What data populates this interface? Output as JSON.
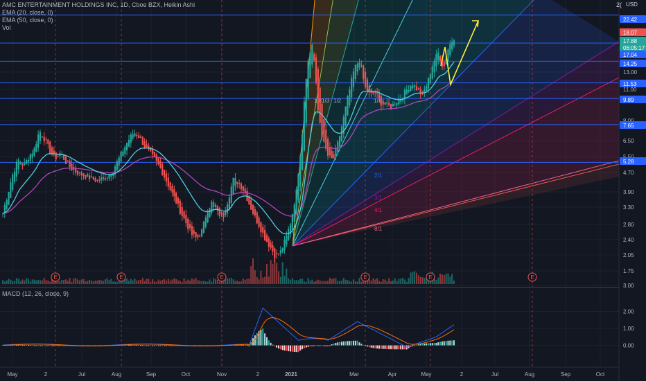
{
  "legend": {
    "title": "AMC ENTERTAINMENT HOLDINGS INC, 1D, Cboe BZX, Heikin Ashi",
    "ema20": "EMA (20, close, 0)",
    "ema50": "EMA (50, close, 0)",
    "vol": "Vol"
  },
  "macd_legend": "MACD (12, 26, close, 9)",
  "axis_unit": "USD",
  "axis_gear": "2(",
  "colors": {
    "background": "#131722",
    "up": "#26a69a",
    "down": "#ef5350",
    "ema20": "#4dd0e1",
    "ema50": "#ab47bc",
    "hline": "#2962ff",
    "arrow": "#ffeb3b"
  },
  "chart_data": [
    {
      "type": "candlestick",
      "ylabel": "USD",
      "scale": "log",
      "ylim": [
        1.6,
        26
      ],
      "y_ticks": [
        "2(",
        "22.42",
        "18.07",
        "17.88",
        "06:05:17",
        "17.04",
        "14.25",
        "13.00",
        "11.53",
        "11.00",
        "9.89",
        "8.00",
        "7.65",
        "6.50",
        "5.50",
        "5.28",
        "4.70",
        "3.90",
        "3.30",
        "2.80",
        "2.40",
        "2.05",
        "1.75",
        "3.00"
      ],
      "x_ticks": [
        "May",
        "2",
        "Jul",
        "Aug",
        "Sep",
        "Oct",
        "Nov",
        "2",
        "2021",
        "Mar",
        "Apr",
        "May",
        "2",
        "Jul",
        "Aug",
        "Sep",
        "Oct"
      ],
      "price_badges": [
        {
          "label": "22.42",
          "color": "#2962ff"
        },
        {
          "label": "18.07",
          "color": "#ef5350"
        },
        {
          "label": "17.88",
          "color": "#26a69a"
        },
        {
          "label": "06:05:17",
          "color": "#26a69a"
        },
        {
          "label": "17.04",
          "color": "#2962ff"
        },
        {
          "label": "14.25",
          "color": "#2962ff"
        },
        {
          "label": "11.53",
          "color": "#2962ff"
        },
        {
          "label": "9.89",
          "color": "#2962ff"
        },
        {
          "label": "7.65",
          "color": "#2962ff"
        },
        {
          "label": "5.28",
          "color": "#2962ff"
        }
      ],
      "horizontal_levels": [
        22.42,
        17.04,
        14.25,
        11.53,
        9.89,
        7.65,
        5.28
      ],
      "earnings_marker": "E",
      "gann_fan_labels": [
        "1/8",
        "1/3",
        "1/2",
        "1/1",
        "2/1",
        "3/1",
        "4/1",
        "8/1"
      ],
      "series": [
        {
          "name": "EMA (20, close, 0)"
        },
        {
          "name": "EMA (50, close, 0)"
        },
        {
          "name": "Vol"
        }
      ],
      "price_path": [
        3.2,
        3.9,
        4.8,
        5.4,
        5.1,
        5.6,
        6.0,
        7.2,
        6.6,
        5.9,
        5.5,
        5.8,
        5.3,
        5.0,
        4.8,
        4.7,
        4.6,
        4.5,
        4.4,
        4.5,
        4.6,
        4.9,
        5.4,
        6.0,
        6.6,
        7.1,
        6.8,
        6.2,
        5.8,
        5.4,
        5.0,
        4.5,
        4.0,
        3.6,
        3.2,
        2.9,
        2.6,
        2.5,
        2.7,
        3.3,
        3.6,
        3.2,
        3.1,
        3.7,
        4.5,
        4.3,
        4.0,
        3.5,
        3.1,
        2.8,
        2.5,
        2.3,
        2.1,
        2.2,
        2.5,
        3.0,
        4.0,
        6.5,
        13.5,
        17.0,
        9.0,
        6.5,
        5.6,
        5.4,
        6.5,
        8.2,
        10.5,
        13.2,
        14.5,
        11.0,
        10.2,
        10.5,
        9.5,
        9.3,
        9.1,
        9.6,
        10.0,
        10.8,
        11.5,
        10.8,
        10.2,
        11.6,
        14.0,
        15.5,
        13.2,
        16.5,
        18.0
      ]
    },
    {
      "type": "line",
      "title": "MACD (12, 26, close, 9)",
      "ylim": [
        -1.2,
        3.0
      ],
      "y_ticks": [
        "2.00",
        "1.00",
        "0.00"
      ]
    }
  ]
}
